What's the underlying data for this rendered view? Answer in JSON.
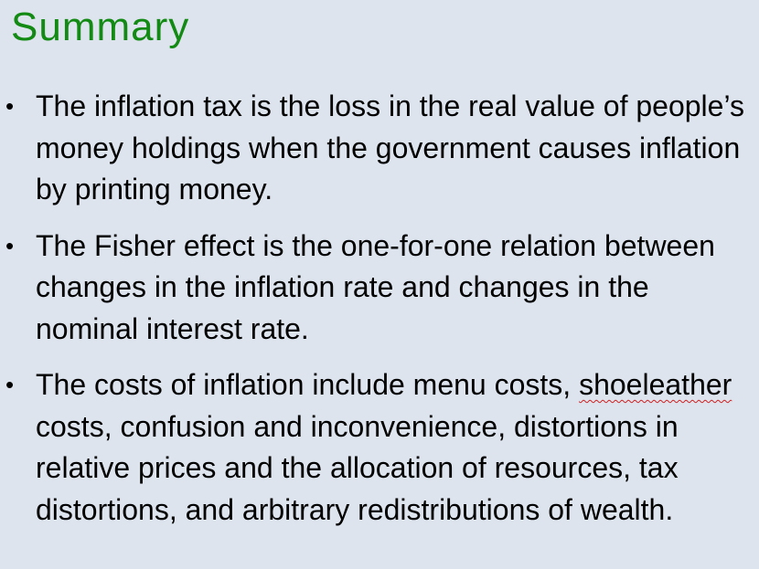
{
  "slide": {
    "title": "Summary",
    "bullets": [
      {
        "text": "The inflation tax is the loss in the real value of people’s money holdings when the government causes inflation by printing money."
      },
      {
        "text": "The Fisher effect is the one-for-one relation between changes in the inflation rate and changes in the nominal interest rate."
      },
      {
        "text_before": "The costs of inflation include menu costs,",
        "spellcheck_word": "shoeleather",
        "text_after": " costs, confusion and inconvenience, distortions in relative prices and the allocation of resources, tax distortions, and arbitrary redistributions of wealth."
      }
    ],
    "bullet_glyph": "•"
  },
  "colors": {
    "background": "#dde4ee",
    "title": "#138a13",
    "body_text": "#000000",
    "spellcheck_underline": "#d02020"
  }
}
